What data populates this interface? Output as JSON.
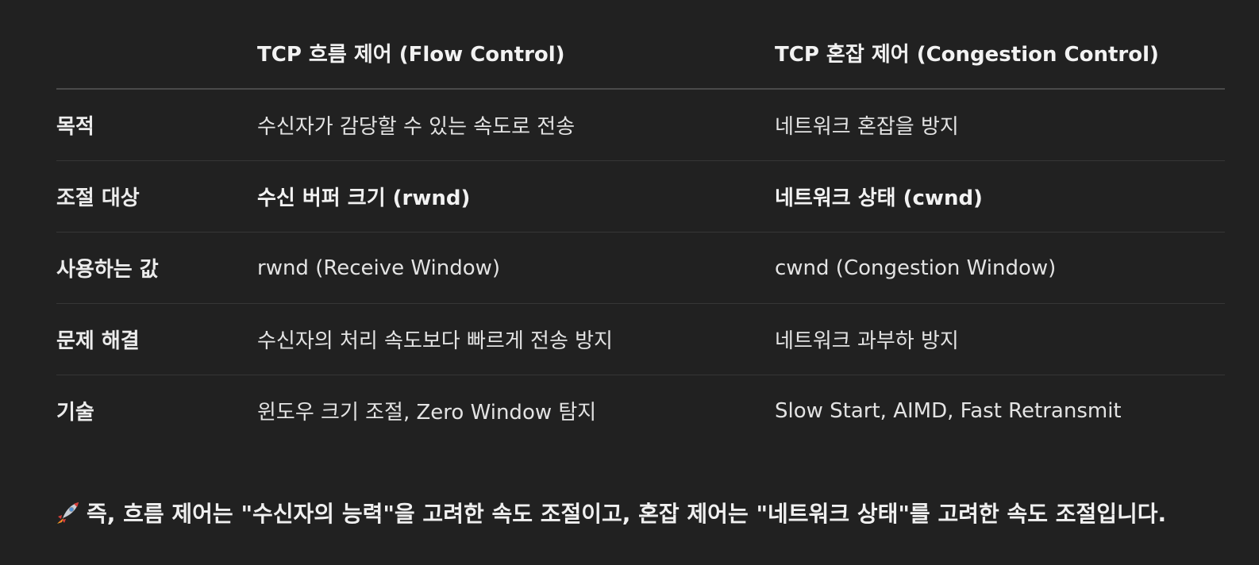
{
  "table": {
    "headers": [
      "",
      "TCP 흐름 제어 (Flow Control)",
      "TCP 혼잡 제어 (Congestion Control)"
    ],
    "rows": [
      {
        "label": "목적",
        "flow": "수신자가 감당할 수 있는 속도로 전송",
        "congestion": "네트워크 혼잡을 방지"
      },
      {
        "label": "조절 대상",
        "flow": "수신 버퍼 크기 (rwnd)",
        "congestion": "네트워크 상태 (cwnd)"
      },
      {
        "label": "사용하는 값",
        "flow": "rwnd (Receive Window)",
        "congestion": "cwnd (Congestion Window)"
      },
      {
        "label": "문제 해결",
        "flow": "수신자의 처리 속도보다 빠르게 전송 방지",
        "congestion": "네트워크 과부하 방지"
      },
      {
        "label": "기술",
        "flow": "윈도우 크기 조절, Zero Window 탐지",
        "congestion": "Slow Start, AIMD, Fast Retransmit"
      }
    ]
  },
  "summary": {
    "icon": "rocket-icon",
    "text": "즉, 흐름 제어는 \"수신자의 능력\"을 고려한 속도 조절이고, 혼잡 제어는 \"네트워크 상태\"를 고려한 속도 조절입니다."
  },
  "colors": {
    "background": "#212121",
    "text": "#ececec",
    "header_rule": "#4a4a4a",
    "row_rule": "#363636"
  }
}
